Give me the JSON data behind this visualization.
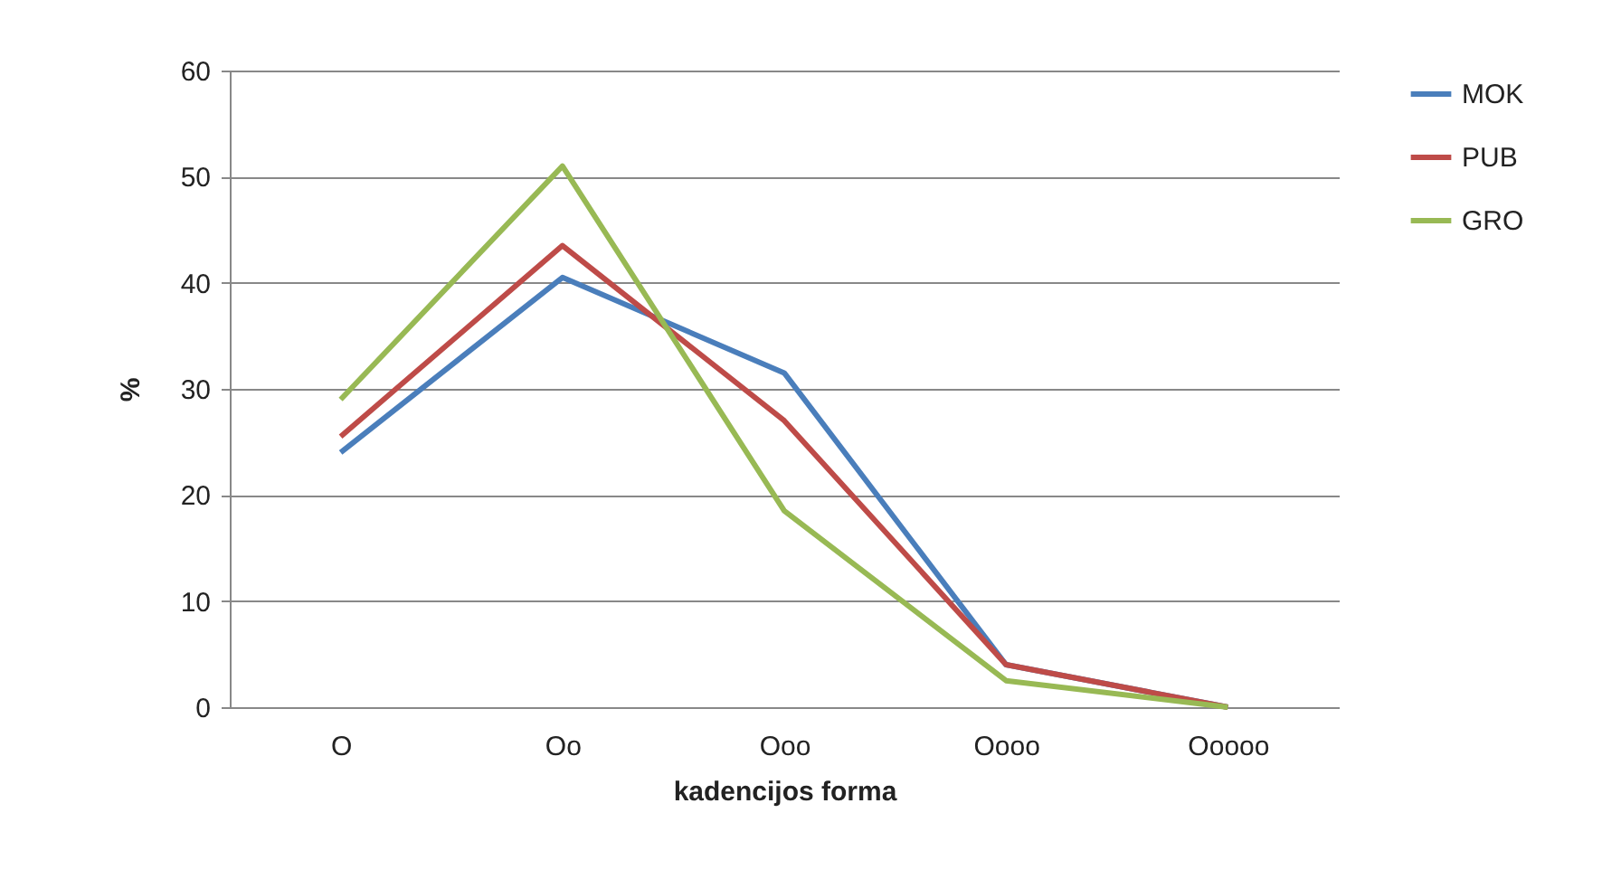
{
  "chart_data": {
    "type": "line",
    "xlabel": "kadencijos forma",
    "ylabel": "%",
    "categories": [
      "O",
      "Oo",
      "Ooo",
      "Oooo",
      "Ooooo"
    ],
    "series": [
      {
        "name": "MOK",
        "color": "#4a7ebb",
        "values": [
          24,
          40.5,
          31.5,
          4,
          0
        ]
      },
      {
        "name": "PUB",
        "color": "#be4b48",
        "values": [
          25.5,
          43.5,
          27,
          4,
          0
        ]
      },
      {
        "name": "GRO",
        "color": "#98b954",
        "values": [
          29,
          51,
          18.5,
          2.5,
          0
        ]
      }
    ],
    "ylim": [
      0,
      60
    ],
    "yticks": [
      0,
      10,
      20,
      30,
      40,
      50,
      60
    ],
    "grid": "y",
    "legend": "right",
    "marker": "none",
    "line_style": "solid"
  }
}
